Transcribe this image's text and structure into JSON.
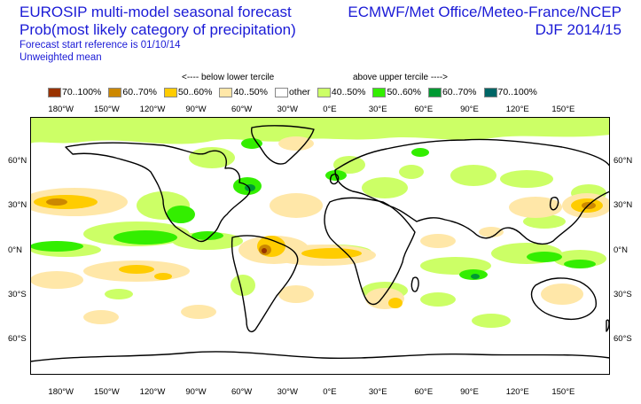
{
  "header": {
    "title_line1": "EUROSIP multi-model seasonal forecast",
    "title_line2": "Prob(most likely category of precipitation)",
    "start_reference": "Forecast start reference is 01/10/14",
    "weighting": "Unweighted mean",
    "centres": "ECMWF/Met Office/Meteo-France/NCEP",
    "season": "DJF 2014/15"
  },
  "legend": {
    "below_note": "<---- below lower tercile",
    "above_note": "above upper tercile ---->",
    "items": [
      {
        "label": "70..100%",
        "color": "#993300"
      },
      {
        "label": "60..70%",
        "color": "#cc8800"
      },
      {
        "label": "50..60%",
        "color": "#ffcc00"
      },
      {
        "label": "40..50%",
        "color": "#ffe7a8"
      },
      {
        "label": "other",
        "color": "#ffffff"
      },
      {
        "label": "40..50%",
        "color": "#ccff66"
      },
      {
        "label": "50..60%",
        "color": "#33ee00"
      },
      {
        "label": "60..70%",
        "color": "#009933"
      },
      {
        "label": "70..100%",
        "color": "#006666"
      }
    ]
  },
  "axes": {
    "lon_labels": [
      "180°W",
      "150°W",
      "120°W",
      "90°W",
      "60°W",
      "30°W",
      "0°E",
      "30°E",
      "60°E",
      "90°E",
      "120°E",
      "150°E"
    ],
    "lat_labels": [
      "60°N",
      "30°N",
      "0°N",
      "30°S",
      "60°S"
    ]
  }
}
